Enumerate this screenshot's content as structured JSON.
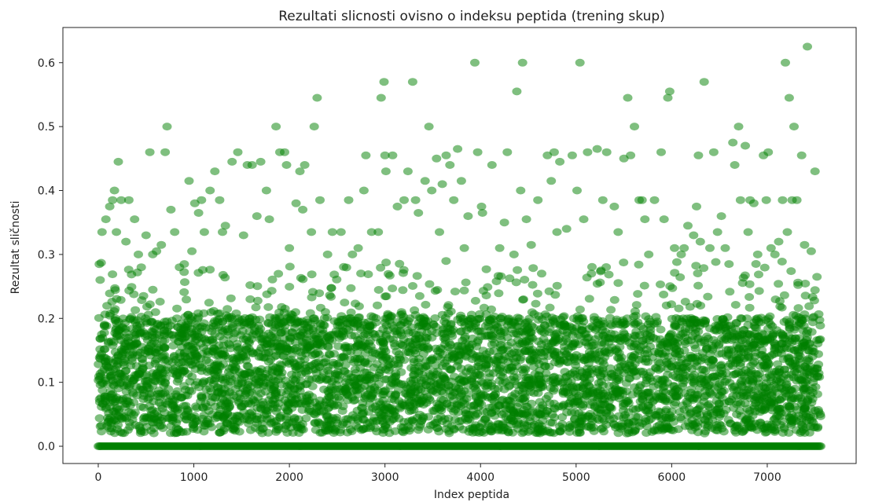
{
  "chart_data": {
    "type": "scatter",
    "title": "Rezultati slicnosti ovisno o indeksu peptida (trening skup)",
    "xlabel": "Index peptida",
    "ylabel": "Rezultat sličnosti",
    "xlim": [
      -370,
      7930
    ],
    "ylim": [
      -0.027,
      0.655
    ],
    "xticks": [
      0,
      1000,
      2000,
      3000,
      4000,
      5000,
      6000,
      7000
    ],
    "xtick_labels": [
      "0",
      "1000",
      "2000",
      "3000",
      "4000",
      "5000",
      "6000",
      "7000"
    ],
    "yticks": [
      0.0,
      0.1,
      0.2,
      0.3,
      0.4,
      0.5,
      0.6
    ],
    "ytick_labels": [
      "0.0",
      "0.1",
      "0.2",
      "0.3",
      "0.4",
      "0.5",
      "0.6"
    ],
    "grid": false,
    "marker_color": "#008000",
    "marker_alpha": 0.5,
    "n_points_approx": 7560,
    "zero_line_range": [
      0,
      7560
    ],
    "dense_band_range": [
      0.02,
      0.2
    ],
    "outliers": [
      [
        20,
        0.26
      ],
      [
        40,
        0.335
      ],
      [
        80,
        0.355
      ],
      [
        120,
        0.375
      ],
      [
        150,
        0.385
      ],
      [
        170,
        0.4
      ],
      [
        190,
        0.335
      ],
      [
        210,
        0.445
      ],
      [
        240,
        0.385
      ],
      [
        290,
        0.32
      ],
      [
        320,
        0.385
      ],
      [
        380,
        0.355
      ],
      [
        420,
        0.3
      ],
      [
        450,
        0.28
      ],
      [
        500,
        0.33
      ],
      [
        540,
        0.46
      ],
      [
        570,
        0.3
      ],
      [
        610,
        0.305
      ],
      [
        660,
        0.315
      ],
      [
        700,
        0.46
      ],
      [
        720,
        0.5
      ],
      [
        760,
        0.37
      ],
      [
        800,
        0.335
      ],
      [
        850,
        0.28
      ],
      [
        900,
        0.285
      ],
      [
        950,
        0.415
      ],
      [
        980,
        0.305
      ],
      [
        1010,
        0.38
      ],
      [
        1050,
        0.365
      ],
      [
        1080,
        0.385
      ],
      [
        1110,
        0.335
      ],
      [
        1170,
        0.4
      ],
      [
        1220,
        0.43
      ],
      [
        1270,
        0.385
      ],
      [
        1300,
        0.335
      ],
      [
        1330,
        0.345
      ],
      [
        1400,
        0.445
      ],
      [
        1460,
        0.46
      ],
      [
        1520,
        0.33
      ],
      [
        1560,
        0.44
      ],
      [
        1610,
        0.44
      ],
      [
        1660,
        0.36
      ],
      [
        1700,
        0.445
      ],
      [
        1760,
        0.4
      ],
      [
        1790,
        0.355
      ],
      [
        1860,
        0.5
      ],
      [
        1900,
        0.46
      ],
      [
        1950,
        0.46
      ],
      [
        1970,
        0.44
      ],
      [
        2000,
        0.31
      ],
      [
        2070,
        0.38
      ],
      [
        2110,
        0.43
      ],
      [
        2140,
        0.37
      ],
      [
        2160,
        0.44
      ],
      [
        2230,
        0.335
      ],
      [
        2260,
        0.5
      ],
      [
        2290,
        0.545
      ],
      [
        2320,
        0.385
      ],
      [
        2400,
        0.3
      ],
      [
        2450,
        0.335
      ],
      [
        2540,
        0.335
      ],
      [
        2620,
        0.385
      ],
      [
        2660,
        0.3
      ],
      [
        2720,
        0.31
      ],
      [
        2780,
        0.4
      ],
      [
        2800,
        0.455
      ],
      [
        2860,
        0.335
      ],
      [
        2930,
        0.335
      ],
      [
        2960,
        0.545
      ],
      [
        2990,
        0.57
      ],
      [
        3000,
        0.455
      ],
      [
        3010,
        0.43
      ],
      [
        3080,
        0.455
      ],
      [
        3130,
        0.375
      ],
      [
        3200,
        0.385
      ],
      [
        3240,
        0.43
      ],
      [
        3290,
        0.57
      ],
      [
        3320,
        0.385
      ],
      [
        3350,
        0.365
      ],
      [
        3420,
        0.415
      ],
      [
        3460,
        0.5
      ],
      [
        3490,
        0.4
      ],
      [
        3540,
        0.45
      ],
      [
        3570,
        0.335
      ],
      [
        3600,
        0.41
      ],
      [
        3640,
        0.455
      ],
      [
        3680,
        0.44
      ],
      [
        3720,
        0.385
      ],
      [
        3760,
        0.465
      ],
      [
        3800,
        0.415
      ],
      [
        3830,
        0.31
      ],
      [
        3870,
        0.36
      ],
      [
        3940,
        0.6
      ],
      [
        3970,
        0.46
      ],
      [
        4010,
        0.375
      ],
      [
        4020,
        0.365
      ],
      [
        4120,
        0.44
      ],
      [
        4200,
        0.31
      ],
      [
        4250,
        0.35
      ],
      [
        4280,
        0.46
      ],
      [
        4350,
        0.3
      ],
      [
        4380,
        0.555
      ],
      [
        4420,
        0.4
      ],
      [
        4440,
        0.6
      ],
      [
        4480,
        0.355
      ],
      [
        4530,
        0.315
      ],
      [
        4600,
        0.385
      ],
      [
        4640,
        0.27
      ],
      [
        4700,
        0.455
      ],
      [
        4740,
        0.415
      ],
      [
        4770,
        0.46
      ],
      [
        4800,
        0.335
      ],
      [
        4830,
        0.445
      ],
      [
        4900,
        0.34
      ],
      [
        4960,
        0.455
      ],
      [
        5010,
        0.4
      ],
      [
        5040,
        0.6
      ],
      [
        5080,
        0.355
      ],
      [
        5120,
        0.46
      ],
      [
        5160,
        0.27
      ],
      [
        5220,
        0.465
      ],
      [
        5280,
        0.385
      ],
      [
        5320,
        0.46
      ],
      [
        5400,
        0.375
      ],
      [
        5440,
        0.335
      ],
      [
        5500,
        0.45
      ],
      [
        5540,
        0.545
      ],
      [
        5570,
        0.455
      ],
      [
        5610,
        0.5
      ],
      [
        5660,
        0.385
      ],
      [
        5690,
        0.385
      ],
      [
        5720,
        0.355
      ],
      [
        5760,
        0.3
      ],
      [
        5820,
        0.385
      ],
      [
        5890,
        0.46
      ],
      [
        5920,
        0.355
      ],
      [
        5960,
        0.545
      ],
      [
        5980,
        0.555
      ],
      [
        6030,
        0.31
      ],
      [
        6100,
        0.3
      ],
      [
        6130,
        0.31
      ],
      [
        6170,
        0.345
      ],
      [
        6230,
        0.33
      ],
      [
        6260,
        0.375
      ],
      [
        6280,
        0.455
      ],
      [
        6300,
        0.32
      ],
      [
        6340,
        0.57
      ],
      [
        6400,
        0.31
      ],
      [
        6440,
        0.46
      ],
      [
        6480,
        0.335
      ],
      [
        6520,
        0.36
      ],
      [
        6560,
        0.31
      ],
      [
        6600,
        0.285
      ],
      [
        6640,
        0.475
      ],
      [
        6660,
        0.44
      ],
      [
        6700,
        0.5
      ],
      [
        6720,
        0.385
      ],
      [
        6770,
        0.47
      ],
      [
        6800,
        0.335
      ],
      [
        6820,
        0.385
      ],
      [
        6860,
        0.38
      ],
      [
        6900,
        0.3
      ],
      [
        6960,
        0.455
      ],
      [
        6990,
        0.385
      ],
      [
        7010,
        0.46
      ],
      [
        7040,
        0.31
      ],
      [
        7080,
        0.3
      ],
      [
        7120,
        0.32
      ],
      [
        7160,
        0.385
      ],
      [
        7190,
        0.6
      ],
      [
        7210,
        0.335
      ],
      [
        7230,
        0.545
      ],
      [
        7260,
        0.385
      ],
      [
        7280,
        0.5
      ],
      [
        7310,
        0.385
      ],
      [
        7360,
        0.455
      ],
      [
        7390,
        0.315
      ],
      [
        7420,
        0.625
      ],
      [
        7460,
        0.305
      ],
      [
        7500,
        0.43
      ],
      [
        7520,
        0.265
      ]
    ]
  }
}
